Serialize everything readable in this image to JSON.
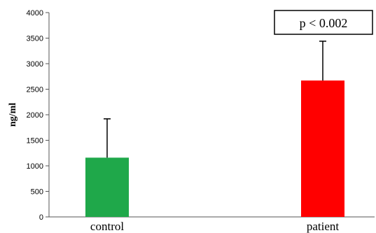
{
  "chart_data": {
    "type": "bar",
    "categories": [
      "control",
      "patient"
    ],
    "values": [
      1160,
      2670
    ],
    "error_bars": [
      760,
      770
    ],
    "colors": [
      "#1fa84a",
      "#ff0000"
    ],
    "ylabel": "ng/ml",
    "ylim": [
      0,
      4000
    ],
    "yticks": [
      0,
      500,
      1000,
      1500,
      2000,
      2500,
      3000,
      3500,
      4000
    ],
    "grid": false,
    "annotation": "p < 0.002"
  }
}
